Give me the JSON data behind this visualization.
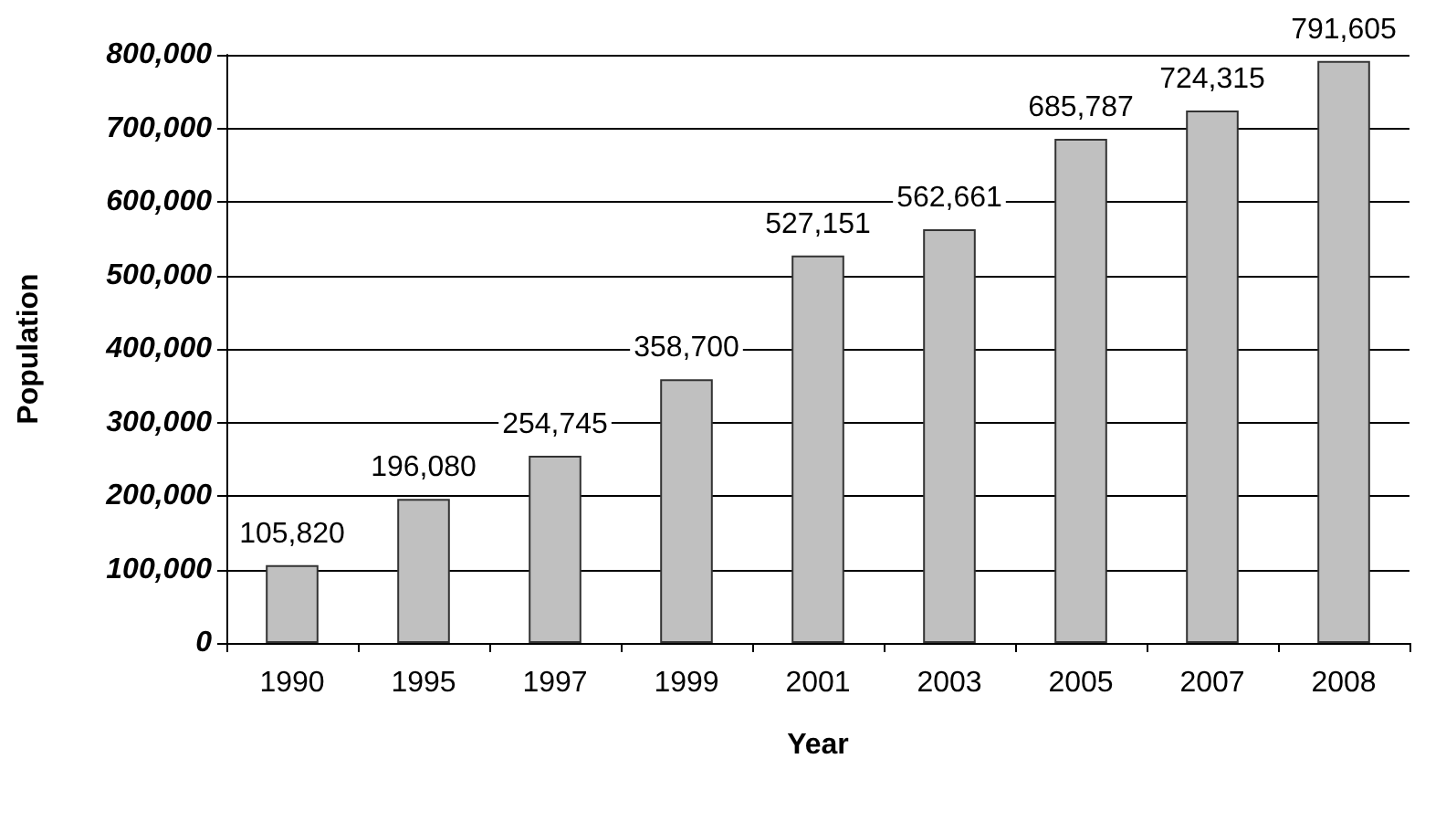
{
  "chart_data": {
    "type": "bar",
    "xlabel": "Year",
    "ylabel": "Population",
    "categories": [
      "1990",
      "1995",
      "1997",
      "1999",
      "2001",
      "2003",
      "2005",
      "2007",
      "2008"
    ],
    "values": [
      105820,
      196080,
      254745,
      358700,
      527151,
      562661,
      685787,
      724315,
      791605
    ],
    "value_labels": [
      "105,820",
      "196,080",
      "254,745",
      "358,700",
      "527,151",
      "562,661",
      "685,787",
      "724,315",
      "791,605"
    ],
    "color": "#c0c0c0",
    "ylim": [
      0,
      800000
    ],
    "yticks": [
      0,
      {
        "value": 100000,
        "label": "100,000"
      },
      {
        "value": 200000,
        "label": "200,000"
      },
      {
        "value": 300000,
        "label": "300,000"
      },
      {
        "value": 400000,
        "label": "400,000"
      },
      {
        "value": 500000,
        "label": "500,000"
      },
      {
        "value": 600000,
        "label": "600,000"
      },
      {
        "value": 700000,
        "label": "700,000"
      },
      {
        "value": 800000,
        "label": "800,000"
      }
    ],
    "grid": "y"
  }
}
